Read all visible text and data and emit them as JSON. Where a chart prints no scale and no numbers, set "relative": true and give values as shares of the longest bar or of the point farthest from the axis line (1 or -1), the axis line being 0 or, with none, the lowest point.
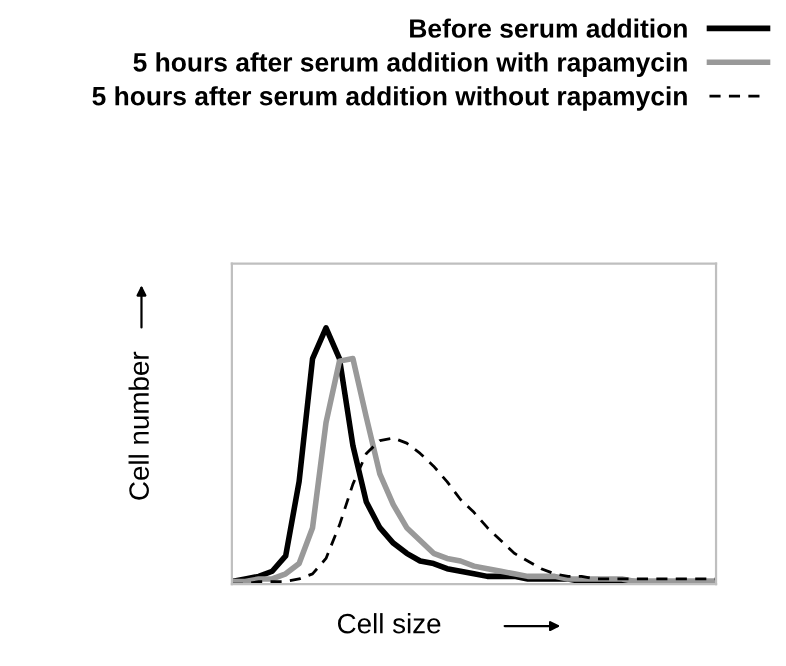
{
  "chart_data": {
    "type": "line",
    "relative": true,
    "xlabel": "Cell size",
    "ylabel": "Cell number",
    "legend": "top",
    "categories": [
      null,
      null,
      null,
      null,
      null,
      null,
      null,
      null,
      null,
      null,
      null,
      null,
      null,
      null,
      null,
      null,
      null,
      null,
      null,
      null,
      null,
      null,
      null,
      null,
      null,
      null,
      null,
      null,
      null,
      null,
      null,
      null,
      null,
      null,
      null,
      null,
      null
    ],
    "series": [
      {
        "name": "Before serum addition",
        "color": "#000000",
        "line_style": "solid",
        "values": [
          0.01,
          0.02,
          0.03,
          0.05,
          0.11,
          0.4,
          0.88,
          1,
          0.88,
          0.54,
          0.32,
          0.22,
          0.16,
          0.12,
          0.09,
          0.08,
          0.06,
          0.05,
          0.04,
          0.03,
          0.03,
          0.03,
          0.02,
          0.02,
          0.02,
          0.02,
          0.01,
          0.01,
          0.01,
          0.01,
          0.01,
          0.01,
          0.01,
          0.01,
          0.01,
          0.01,
          0.01
        ]
      },
      {
        "name": "5 hours after serum addition with rapamycin",
        "color": "#999999",
        "line_style": "solid",
        "values": [
          0.01,
          0.01,
          0.02,
          0.02,
          0.04,
          0.08,
          0.22,
          0.63,
          0.87,
          0.88,
          0.65,
          0.43,
          0.31,
          0.22,
          0.17,
          0.12,
          0.1,
          0.09,
          0.07,
          0.06,
          0.05,
          0.04,
          0.03,
          0.03,
          0.03,
          0.02,
          0.02,
          0.02,
          0.02,
          0.02,
          0.01,
          0.01,
          0.01,
          0.01,
          0.01,
          0.01,
          0.01
        ]
      },
      {
        "name": "5 hours after serum addition without rapamycin",
        "color": "#000000",
        "line_style": "dashed",
        "values": [
          0,
          0,
          0.01,
          0.01,
          0.01,
          0.02,
          0.04,
          0.1,
          0.23,
          0.39,
          0.51,
          0.56,
          0.57,
          0.55,
          0.51,
          0.46,
          0.4,
          0.33,
          0.28,
          0.22,
          0.17,
          0.12,
          0.09,
          0.06,
          0.04,
          0.03,
          0.03,
          0.02,
          0.02,
          0.02,
          0.02,
          0.02,
          0.02,
          0.02,
          0.02,
          0.02,
          0.02
        ]
      }
    ]
  }
}
